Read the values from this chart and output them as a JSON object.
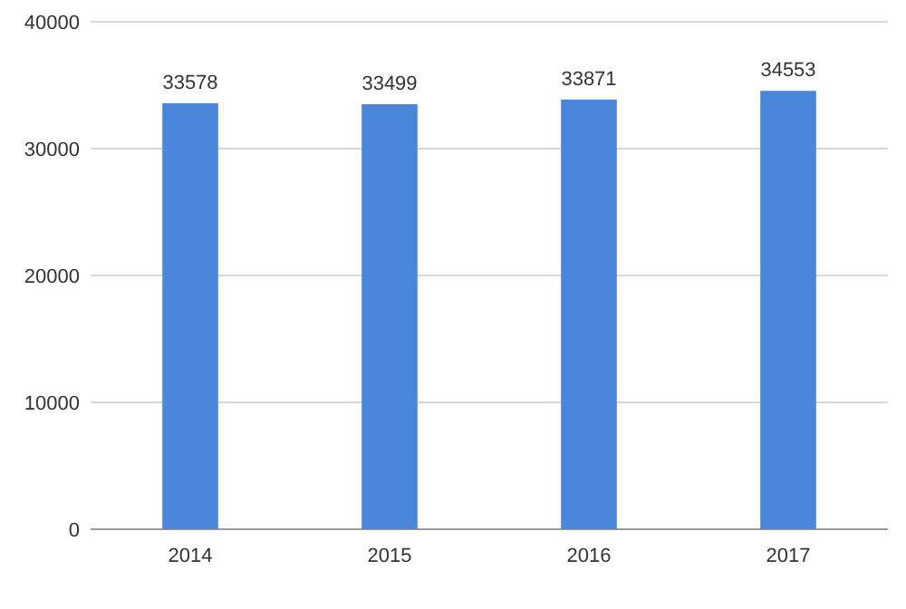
{
  "chart_data": {
    "type": "bar",
    "categories": [
      "2014",
      "2015",
      "2016",
      "2017"
    ],
    "values": [
      33578,
      33499,
      33871,
      34553
    ],
    "color": "#4a86d9",
    "ylim": [
      0,
      40000
    ],
    "yticks": [
      0,
      10000,
      20000,
      30000,
      40000
    ],
    "grid": "y",
    "data_labels": true
  }
}
